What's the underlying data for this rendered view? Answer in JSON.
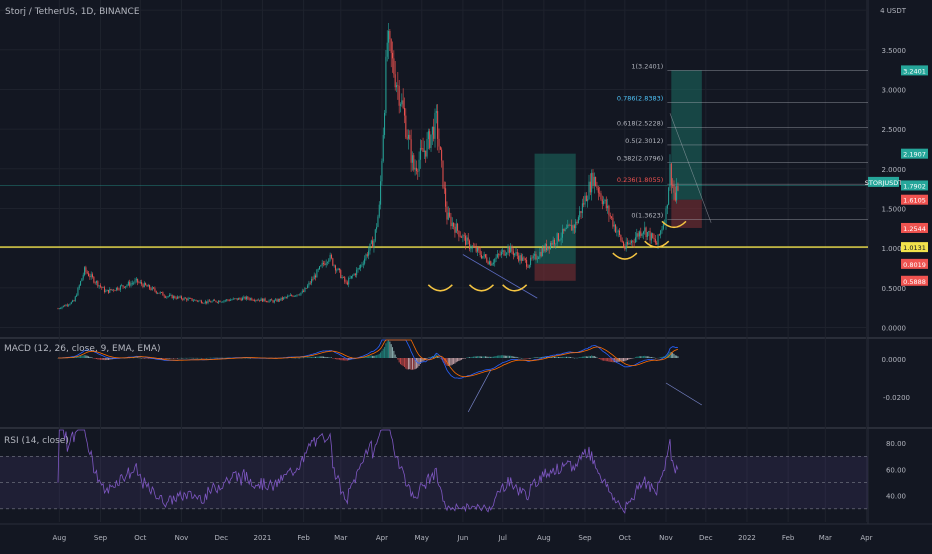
{
  "header": {
    "symbol": "Storj / TetherUS, 1D, BINANCE",
    "currency": "USDT"
  },
  "colors": {
    "background": "#131722",
    "up": "#26a69a",
    "down": "#ef5350",
    "support": "#f2e34c",
    "long_target": "#1b6d63",
    "long_stop": "#7a2f33",
    "fib": "#b2b5be",
    "rsi": "#7e57c2",
    "macd_line": "#2962ff",
    "signal_line": "#ff6d00",
    "arc": "#f5c542"
  },
  "price_axis": {
    "ticks": [
      "4 USDT",
      "3.5000",
      "3.0000",
      "2.5000",
      "2.0000",
      "1.5000",
      "1.0000",
      "0.5000",
      "0.0000"
    ],
    "tags": [
      {
        "text": "3.2401",
        "bg": "#26a69a"
      },
      {
        "text": "2.1907",
        "bg": "#26a69a"
      },
      {
        "text": "STORJUSDT",
        "bg": "#26a69a"
      },
      {
        "text": "1.7902",
        "bg": "#26a69a"
      },
      {
        "text": "1.6105",
        "bg": "#ef5350"
      },
      {
        "text": "1.2544",
        "bg": "#ef5350"
      },
      {
        "text": "1.0131",
        "bg": "#f2e34c"
      },
      {
        "text": "0.8019",
        "bg": "#ef5350"
      },
      {
        "text": "0.5888",
        "bg": "#ef5350"
      }
    ]
  },
  "fib_levels": [
    {
      "label": "1(3.2401)"
    },
    {
      "label": "0.786(2.8383)"
    },
    {
      "label": "0.618(2.5228)"
    },
    {
      "label": "0.5(2.3012)"
    },
    {
      "label": "0.382(2.0796)"
    },
    {
      "label": "0.236(1.8055)"
    },
    {
      "label": "0(1.3623)"
    }
  ],
  "macd": {
    "title": "MACD (12, 26, close, 9, EMA, EMA)",
    "ticks": [
      "0.0000",
      "-0.0200"
    ]
  },
  "rsi": {
    "title": "RSI (14, close)",
    "ticks": [
      "80.00",
      "60.00",
      "40.00"
    ]
  },
  "time_axis": [
    "Aug",
    "Sep",
    "Oct",
    "Nov",
    "Dec",
    "2021",
    "Feb",
    "Mar",
    "Apr",
    "May",
    "Jun",
    "Jul",
    "Aug",
    "Sep",
    "Oct",
    "Nov",
    "Dec",
    "2022",
    "Feb",
    "Mar",
    "Apr"
  ],
  "chart_data": {
    "type": "candlestick",
    "title": "Storj / TetherUS, 1D, BINANCE",
    "unit": "USDT",
    "ylim": [
      0,
      4
    ],
    "x_range": [
      "2020-07-31",
      "2021-11-10"
    ],
    "grid": true,
    "close_keyframes": [
      {
        "x": "2020-07-31",
        "y": 0.24
      },
      {
        "x": "2020-08-12",
        "y": 0.33
      },
      {
        "x": "2020-08-20",
        "y": 0.72
      },
      {
        "x": "2020-09-05",
        "y": 0.45
      },
      {
        "x": "2020-09-28",
        "y": 0.58
      },
      {
        "x": "2020-10-20",
        "y": 0.4
      },
      {
        "x": "2020-11-20",
        "y": 0.32
      },
      {
        "x": "2020-12-20",
        "y": 0.37
      },
      {
        "x": "2021-01-10",
        "y": 0.33
      },
      {
        "x": "2021-02-01",
        "y": 0.45
      },
      {
        "x": "2021-02-20",
        "y": 0.9
      },
      {
        "x": "2021-03-05",
        "y": 0.55
      },
      {
        "x": "2021-03-15",
        "y": 0.75
      },
      {
        "x": "2021-03-26",
        "y": 1.1
      },
      {
        "x": "2021-03-30",
        "y": 1.5
      },
      {
        "x": "2021-04-02",
        "y": 2.5
      },
      {
        "x": "2021-04-05",
        "y": 3.6
      },
      {
        "x": "2021-04-15",
        "y": 2.9
      },
      {
        "x": "2021-04-25",
        "y": 2.0
      },
      {
        "x": "2021-05-05",
        "y": 2.3
      },
      {
        "x": "2021-05-12",
        "y": 2.6
      },
      {
        "x": "2021-05-20",
        "y": 1.4
      },
      {
        "x": "2021-06-05",
        "y": 1.05
      },
      {
        "x": "2021-06-22",
        "y": 0.82
      },
      {
        "x": "2021-07-05",
        "y": 1.0
      },
      {
        "x": "2021-07-20",
        "y": 0.8
      },
      {
        "x": "2021-08-05",
        "y": 1.05
      },
      {
        "x": "2021-08-25",
        "y": 1.3
      },
      {
        "x": "2021-09-07",
        "y": 1.9
      },
      {
        "x": "2021-09-20",
        "y": 1.4
      },
      {
        "x": "2021-10-01",
        "y": 1.0
      },
      {
        "x": "2021-10-15",
        "y": 1.25
      },
      {
        "x": "2021-10-25",
        "y": 1.05
      },
      {
        "x": "2021-11-01",
        "y": 1.45
      },
      {
        "x": "2021-11-04",
        "y": 2.0
      },
      {
        "x": "2021-11-08",
        "y": 1.6
      },
      {
        "x": "2021-11-10",
        "y": 1.79
      }
    ],
    "support_level": 1.0131,
    "positions": [
      {
        "type": "long",
        "start": "2021-07-25",
        "end": "2021-08-25",
        "entry": 0.8019,
        "target": 2.1907,
        "stop": 0.5888
      },
      {
        "type": "long",
        "start": "2021-11-05",
        "end": "2021-11-28",
        "entry": 1.6105,
        "target": 3.2401,
        "stop": 1.2544
      }
    ],
    "fibonacci": {
      "high": 3.2401,
      "low": 1.3623,
      "levels": [
        1,
        0.786,
        0.618,
        0.5,
        0.382,
        0.236,
        0
      ]
    },
    "indicators": {
      "macd": {
        "fast": 12,
        "slow": 26,
        "signal": 9,
        "ylim": [
          -0.02,
          0.0
        ]
      },
      "rsi": {
        "period": 14,
        "bands": [
          70,
          50,
          30
        ],
        "ticks": [
          80,
          60,
          40
        ]
      }
    }
  }
}
